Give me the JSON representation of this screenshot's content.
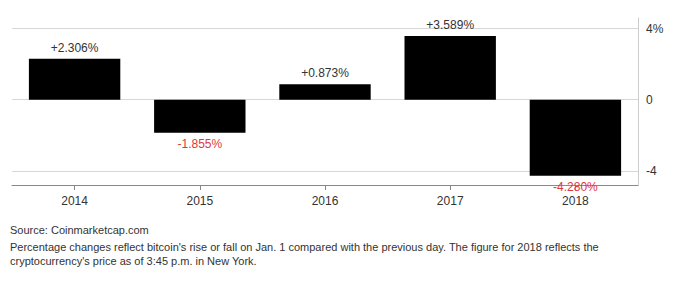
{
  "chart_data": {
    "type": "bar",
    "categories": [
      "2014",
      "2015",
      "2016",
      "2017",
      "2018"
    ],
    "values": [
      2.306,
      -1.855,
      0.873,
      3.589,
      -4.28
    ],
    "value_labels": [
      "+2.306%",
      "-1.855%",
      "+0.873%",
      "+3.589%",
      "-4.280%"
    ],
    "color": "#000000",
    "ylim": [
      -4.8,
      4.6
    ],
    "yticks": [
      -4,
      0,
      {
        "value": 4,
        "label": "4%"
      }
    ],
    "grid": true,
    "data_labels": true,
    "annotations": [
      "Source: Coinmarketcap.com",
      "Percentage changes reflect bitcoin's rise or fall on Jan. 1 compared with the previous day. The figure for 2018 reflects the cryptocurrency's price as of 3:45 p.m. in New York."
    ]
  }
}
